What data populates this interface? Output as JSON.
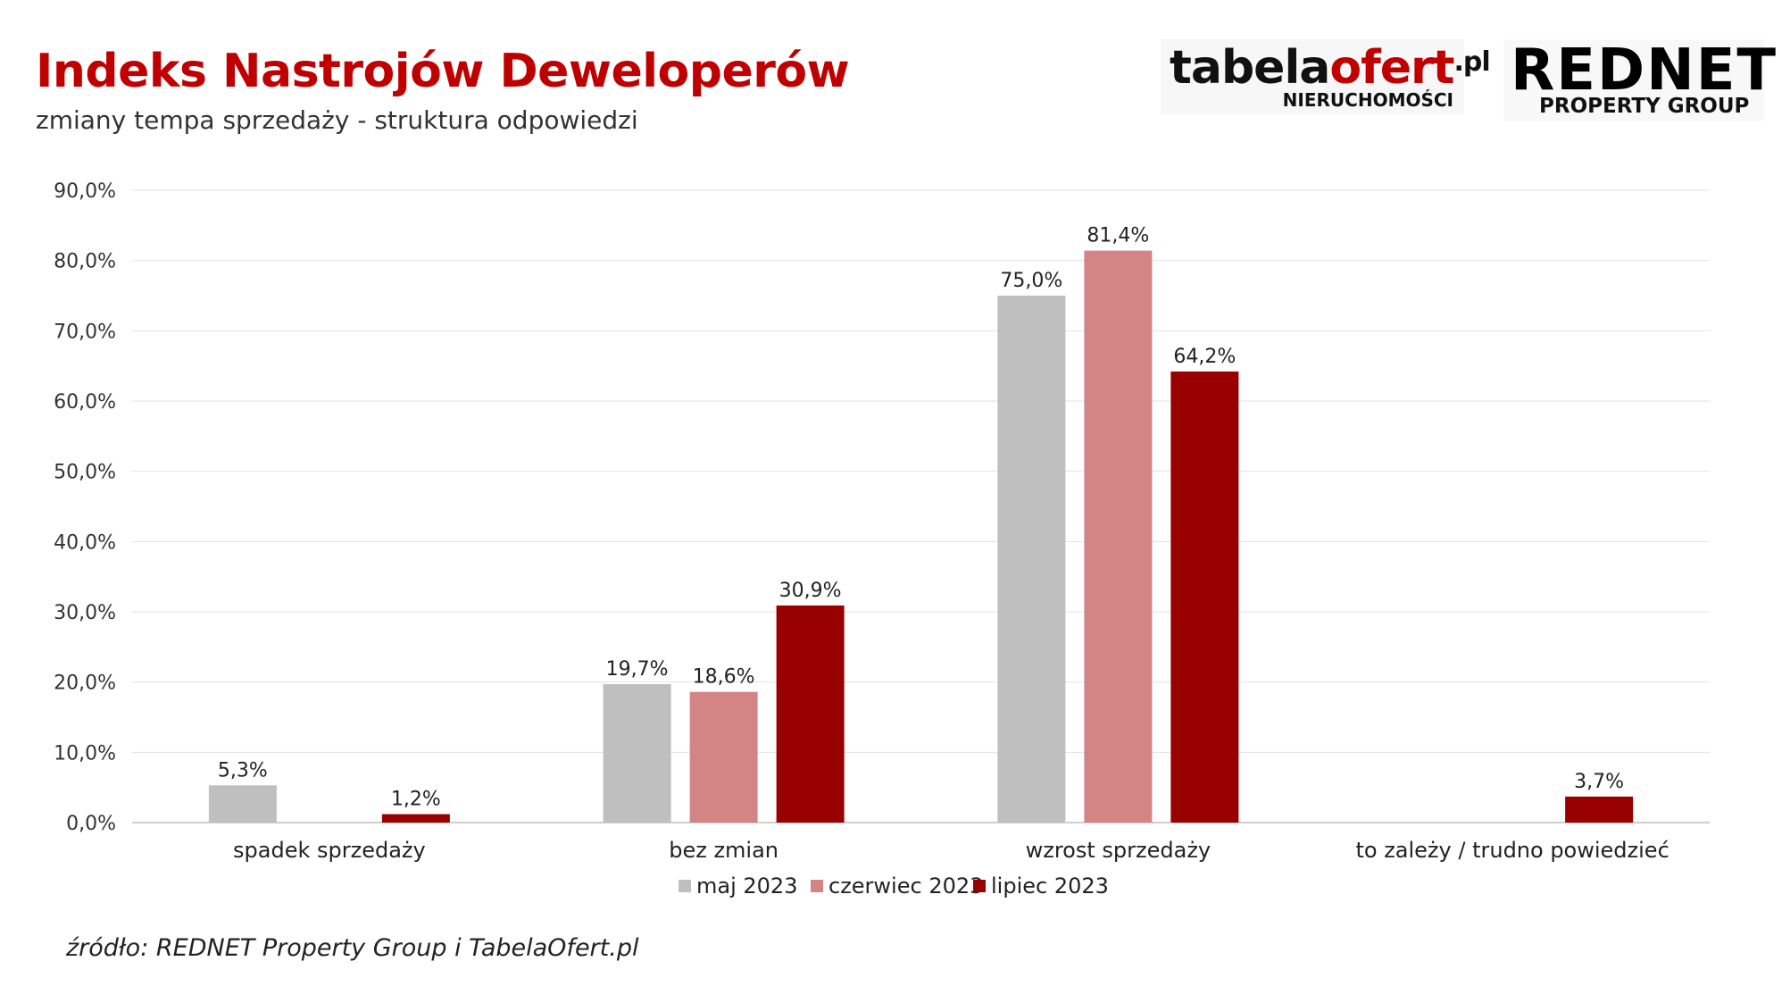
{
  "header": {
    "title": "Indeks Nastrojów Deweloperów",
    "subtitle": "zmiany tempa sprzedaży - struktura odpowiedzi"
  },
  "logos": {
    "tabela": {
      "main_a": "tabela",
      "main_b": "ofert",
      "main_c": ".pl",
      "sub": "NIERUCHOMOŚCI"
    },
    "rednet": {
      "main": "REDNET",
      "sub": "PROPERTY GROUP"
    }
  },
  "footer": {
    "source": "źródło: REDNET Property Group i TabelaOfert.pl"
  },
  "chart_data": {
    "type": "bar",
    "categories": [
      "spadek sprzedaży",
      "bez zmian",
      "wzrost sprzedaży",
      "to zależy / trudno powiedzieć"
    ],
    "series": [
      {
        "name": "maj 2023",
        "color": "#bfbfbf",
        "values": [
          5.3,
          19.7,
          75.0,
          null
        ],
        "labels": [
          "5,3%",
          "19,7%",
          "75,0%",
          ""
        ]
      },
      {
        "name": "czerwiec 2023",
        "color": "#d38585",
        "values": [
          null,
          18.6,
          81.4,
          null
        ],
        "labels": [
          "",
          "18,6%",
          "81,4%",
          ""
        ]
      },
      {
        "name": "lipiec 2023",
        "color": "#990000",
        "values": [
          1.2,
          30.9,
          64.2,
          3.7
        ],
        "labels": [
          "1,2%",
          "30,9%",
          "64,2%",
          "3,7%"
        ]
      }
    ],
    "ylim": [
      0,
      90
    ],
    "yticks": [
      0,
      10,
      20,
      30,
      40,
      50,
      60,
      70,
      80,
      90
    ],
    "ytick_labels": [
      "0,0%",
      "10,0%",
      "20,0%",
      "30,0%",
      "40,0%",
      "50,0%",
      "60,0%",
      "70,0%",
      "80,0%",
      "90,0%"
    ],
    "grid": true,
    "legend": "bottom-center"
  }
}
